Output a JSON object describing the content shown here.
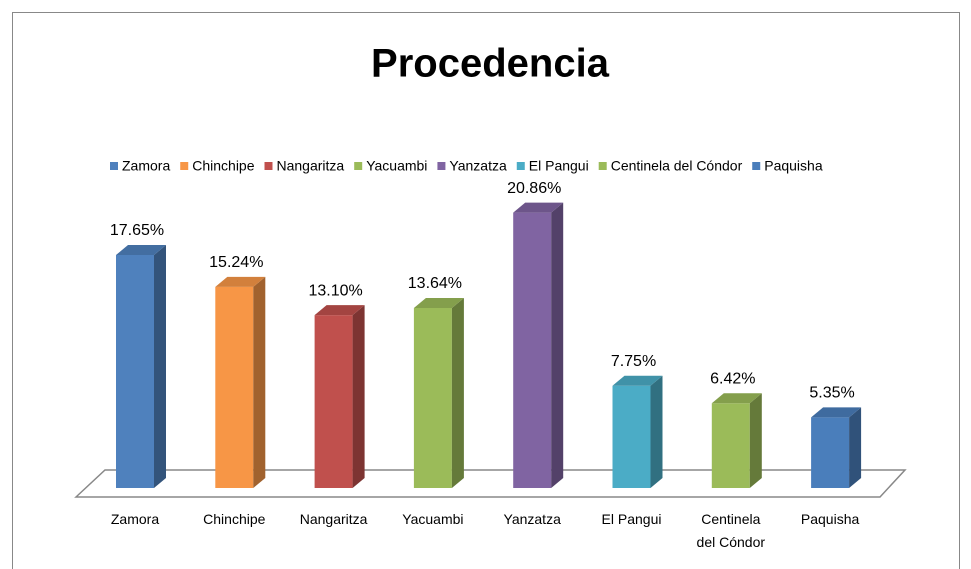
{
  "chart_data": {
    "type": "bar3d",
    "title": "Procedencia",
    "categories": [
      "Zamora",
      "Chinchipe",
      "Nangaritza",
      "Yacuambi",
      "Yanzatza",
      "El Pangui",
      "Centinela del Cóndor",
      "Paquisha"
    ],
    "values": [
      17.65,
      15.24,
      13.1,
      13.64,
      20.86,
      7.75,
      6.42,
      5.35
    ],
    "value_labels": [
      "17.65%",
      "15.24%",
      "13.10%",
      "13.64%",
      "20.86%",
      "7.75%",
      "6.42%",
      "5.35%"
    ],
    "colors": [
      "#4f81bd",
      "#f79646",
      "#c0504d",
      "#9bbb59",
      "#8064a2",
      "#4bacc6",
      "#9bbb59",
      "#4a7ebb"
    ],
    "legend": "top"
  }
}
